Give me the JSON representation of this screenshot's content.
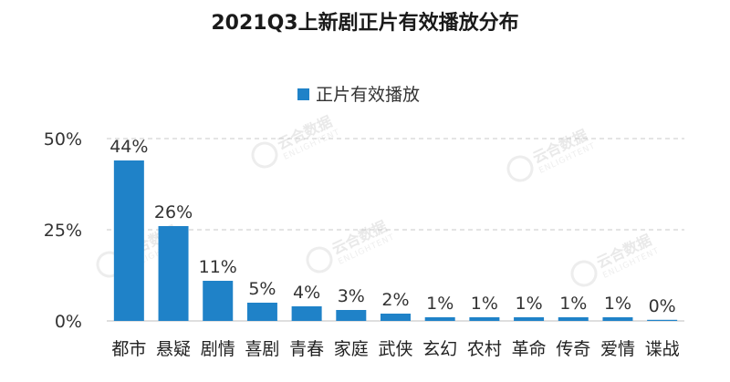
{
  "chart_data": {
    "type": "bar",
    "title": "2021Q3上新剧正片有效播放分布",
    "legend": {
      "position": "top",
      "entries": [
        "正片有效播放"
      ]
    },
    "series": [
      {
        "name": "正片有效播放",
        "color": "#1f82c8",
        "values": [
          44,
          26,
          11,
          5,
          4,
          3,
          2,
          1,
          1,
          1,
          1,
          1,
          0.3
        ],
        "labels": [
          "44%",
          "26%",
          "11%",
          "5%",
          "4%",
          "3%",
          "2%",
          "1%",
          "1%",
          "1%",
          "1%",
          "1%",
          "0%"
        ]
      }
    ],
    "categories": [
      "都市",
      "悬疑",
      "剧情",
      "喜剧",
      "青春",
      "家庭",
      "武侠",
      "玄幻",
      "农村",
      "革命",
      "传奇",
      "爱情",
      "谍战"
    ],
    "ylim": [
      0,
      50
    ],
    "yticks": [
      0,
      25,
      50
    ],
    "ytick_labels": [
      "0%",
      "25%",
      "50%"
    ],
    "xlabel": "",
    "ylabel": "",
    "grid": true
  },
  "watermark": {
    "text": "云合数据",
    "sub": "ENLIGHTENT"
  }
}
